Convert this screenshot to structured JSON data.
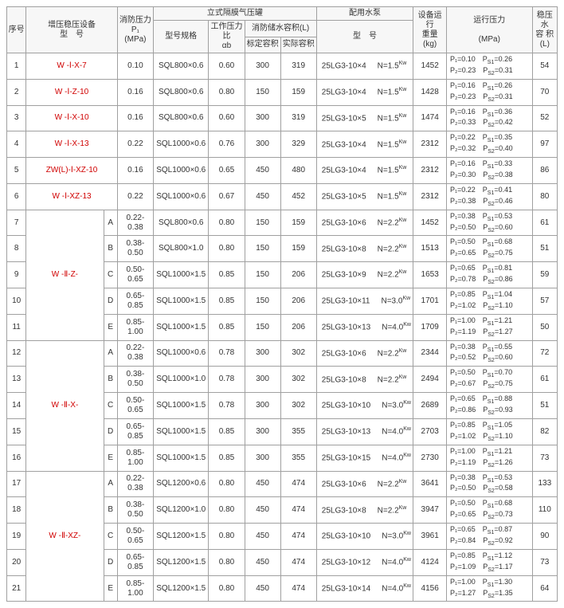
{
  "headers": {
    "seq": "序号",
    "model": "增压稳压设备\n型　号",
    "firePressure": "消防压力\nP₁\n(MPa)",
    "tankGroup": "立式隔膜气压罐",
    "tankModel": "型号规格",
    "workRatio": "工作压力比\nαb",
    "capacityGroup": "消防储水容积(L)",
    "stdCap": "标定容积",
    "realCap": "实际容积",
    "pumpGroup": "配用水泵",
    "pumpModel": "型　号",
    "runWeight": "设备运行\n重量\n(kg)",
    "runPressure": "运行压力\n\n(MPa)",
    "stableCap": "稳压水\n容 积\n(L)"
  },
  "rows": [
    {
      "seq": "1",
      "model": "W -Ⅰ-X-7",
      "modelRed": true,
      "sub": "",
      "fp": "0.10",
      "tank": "SQL800×0.6",
      "ratio": "0.60",
      "std": "300",
      "real": "319",
      "pump": "25LG3-10×4",
      "pumpN": "N=1.5",
      "wt": "1452",
      "p": "P₁=0.10　P<sub>S1</sub>=0.26\nP₂=0.23　P<sub>S2</sub>=0.31",
      "cap": "54"
    },
    {
      "seq": "2",
      "model": "W -Ⅰ-Z-10",
      "modelRed": true,
      "sub": "",
      "fp": "0.16",
      "tank": "SQL800×0.6",
      "ratio": "0.80",
      "std": "150",
      "real": "159",
      "pump": "25LG3-10×4",
      "pumpN": "N=1.5",
      "wt": "1428",
      "p": "P₁=0.16　P<sub>S1</sub>=0.26\nP₂=0.23　P<sub>S2</sub>=0.31",
      "cap": "70"
    },
    {
      "seq": "3",
      "model": "W -Ⅰ-X-10",
      "modelRed": true,
      "sub": "",
      "fp": "0.16",
      "tank": "SQL800×0.6",
      "ratio": "0.60",
      "std": "300",
      "real": "319",
      "pump": "25LG3-10×5",
      "pumpN": "N=1.5",
      "wt": "1474",
      "p": "P₁=0.16　P<sub>S1</sub>=0.36\nP₂=0.33　P<sub>S2</sub>=0.42",
      "cap": "52"
    },
    {
      "seq": "4",
      "model": "W -Ⅰ-X-13",
      "modelRed": true,
      "sub": "",
      "fp": "0.22",
      "tank": "SQL1000×0.6",
      "ratio": "0.76",
      "std": "300",
      "real": "329",
      "pump": "25LG3-10×4",
      "pumpN": "N=1.5",
      "wt": "2312",
      "p": "P₁=0.22　P<sub>S1</sub>=0.35\nP₂=0.32　P<sub>S2</sub>=0.40",
      "cap": "97"
    },
    {
      "seq": "5",
      "model": "ZW(L)-Ⅰ-XZ-10",
      "modelRed": true,
      "sub": "",
      "fp": "0.16",
      "tank": "SQL1000×0.6",
      "ratio": "0.65",
      "std": "450",
      "real": "480",
      "pump": "25LG3-10×4",
      "pumpN": "N=1.5",
      "wt": "2312",
      "p": "P₁=0.16　P<sub>S1</sub>=0.33\nP₂=0.30　P<sub>S2</sub>=0.38",
      "cap": "86"
    },
    {
      "seq": "6",
      "model": "W -Ⅰ-XZ-13",
      "modelRed": true,
      "sub": "",
      "fp": "0.22",
      "tank": "SQL1000×0.6",
      "ratio": "0.67",
      "std": "450",
      "real": "452",
      "pump": "25LG3-10×5",
      "pumpN": "N=1.5",
      "wt": "2312",
      "p": "P₁=0.22　P<sub>S1</sub>=0.41\nP₂=0.38　P<sub>S2</sub>=0.46",
      "cap": "80"
    }
  ],
  "groups": [
    {
      "model": "W -Ⅱ-Z-",
      "modelRed": true,
      "rows": [
        {
          "seq": "7",
          "sub": "A",
          "fp": "0.22-0.38",
          "tank": "SQL800×0.6",
          "ratio": "0.80",
          "std": "150",
          "real": "159",
          "pump": "25LG3-10×6",
          "pumpN": "N=2.2",
          "wt": "1452",
          "p": "P₁=0.38　P<sub>S1</sub>=0.53\nP₂=0.50　P<sub>S2</sub>=0.60",
          "cap": "61"
        },
        {
          "seq": "8",
          "sub": "B",
          "fp": "0.38-0.50",
          "tank": "SQL800×1.0",
          "ratio": "0.80",
          "std": "150",
          "real": "159",
          "pump": "25LG3-10×8",
          "pumpN": "N=2.2",
          "wt": "1513",
          "p": "P₁=0.50　P<sub>S1</sub>=0.68\nP₂=0.65　P<sub>S2</sub>=0.75",
          "cap": "51"
        },
        {
          "seq": "9",
          "sub": "C",
          "fp": "0.50-0.65",
          "tank": "SQL1000×1.5",
          "ratio": "0.85",
          "std": "150",
          "real": "206",
          "pump": "25LG3-10×9",
          "pumpN": "N=2.2",
          "wt": "1653",
          "p": "P₁=0.65　P<sub>S1</sub>=0.81\nP₂=0.78　P<sub>S2</sub>=0.86",
          "cap": "59"
        },
        {
          "seq": "10",
          "sub": "D",
          "fp": "0.65-0.85",
          "tank": "SQL1000×1.5",
          "ratio": "0.85",
          "std": "150",
          "real": "206",
          "pump": "25LG3-10×11",
          "pumpN": "N=3.0",
          "wt": "1701",
          "p": "P₁=0.85　P<sub>S1</sub>=1.04\nP₂=1.02　P<sub>S2</sub>=1.10",
          "cap": "57"
        },
        {
          "seq": "11",
          "sub": "E",
          "fp": "0.85-1.00",
          "tank": "SQL1000×1.5",
          "ratio": "0.85",
          "std": "150",
          "real": "206",
          "pump": "25LG3-10×13",
          "pumpN": "N=4.0",
          "wt": "1709",
          "p": "P₁=1.00　P<sub>S1</sub>=1.21\nP₂=1.19　P<sub>S2</sub>=1.27",
          "cap": "50"
        }
      ]
    },
    {
      "model": "W -Ⅱ-X-",
      "modelRed": true,
      "rows": [
        {
          "seq": "12",
          "sub": "A",
          "fp": "0.22-0.38",
          "tank": "SQL1000×0.6",
          "ratio": "0.78",
          "std": "300",
          "real": "302",
          "pump": "25LG3-10×6",
          "pumpN": "N=2.2",
          "wt": "2344",
          "p": "P₁=0.38　P<sub>S1</sub>=0.55\nP₂=0.52　P<sub>S2</sub>=0.60",
          "cap": "72"
        },
        {
          "seq": "13",
          "sub": "B",
          "fp": "0.38-0.50",
          "tank": "SQL1000×1.0",
          "ratio": "0.78",
          "std": "300",
          "real": "302",
          "pump": "25LG3-10×8",
          "pumpN": "N=2.2",
          "wt": "2494",
          "p": "P₁=0.50　P<sub>S1</sub>=0.70\nP₂=0.67　P<sub>S2</sub>=0.75",
          "cap": "61"
        },
        {
          "seq": "14",
          "sub": "C",
          "fp": "0.50-0.65",
          "tank": "SQL1000×1.5",
          "ratio": "0.78",
          "std": "300",
          "real": "302",
          "pump": "25LG3-10×10",
          "pumpN": "N=3.0",
          "wt": "2689",
          "p": "P₁=0.65　P<sub>S1</sub>=0.88\nP₂=0.86　P<sub>S2</sub>=0.93",
          "cap": "51"
        },
        {
          "seq": "15",
          "sub": "D",
          "fp": "0.65-0.85",
          "tank": "SQL1000×1.5",
          "ratio": "0.85",
          "std": "300",
          "real": "355",
          "pump": "25LG3-10×13",
          "pumpN": "N=4.0",
          "wt": "2703",
          "p": "P₁=0.85　P<sub>S1</sub>=1.05\nP₂=1.02　P<sub>S2</sub>=1.10",
          "cap": "82"
        },
        {
          "seq": "16",
          "sub": "E",
          "fp": "0.85-1.00",
          "tank": "SQL1000×1.5",
          "ratio": "0.85",
          "std": "300",
          "real": "355",
          "pump": "25LG3-10×15",
          "pumpN": "N=4.0",
          "wt": "2730",
          "p": "P₁=1.00　P<sub>S1</sub>=1.21\nP₂=1.19　P<sub>S2</sub>=1.26",
          "cap": "73"
        }
      ]
    },
    {
      "model": "W -Ⅱ-XZ-",
      "modelRed": true,
      "rows": [
        {
          "seq": "17",
          "sub": "A",
          "fp": "0.22-0.38",
          "tank": "SQL1200×0.6",
          "ratio": "0.80",
          "std": "450",
          "real": "474",
          "pump": "25LG3-10×6",
          "pumpN": "N=2.2",
          "wt": "3641",
          "p": "P₁=0.38　P<sub>S1</sub>=0.53\nP₂=0.50　P<sub>S2</sub>=0.58",
          "cap": "133"
        },
        {
          "seq": "18",
          "sub": "B",
          "fp": "0.38-0.50",
          "tank": "SQL1200×1.0",
          "ratio": "0.80",
          "std": "450",
          "real": "474",
          "pump": "25LG3-10×8",
          "pumpN": "N=2.2",
          "wt": "3947",
          "p": "P₁=0.50　P<sub>S1</sub>=0.68\nP₂=0.65　P<sub>S2</sub>=0.73",
          "cap": "110"
        },
        {
          "seq": "19",
          "sub": "C",
          "fp": "0.50-0.65",
          "tank": "SQL1200×1.5",
          "ratio": "0.80",
          "std": "450",
          "real": "474",
          "pump": "25LG3-10×10",
          "pumpN": "N=3.0",
          "wt": "3961",
          "p": "P₁=0.65　P<sub>S1</sub>=0.87\nP₂=0.84　P<sub>S2</sub>=0.92",
          "cap": "90"
        },
        {
          "seq": "20",
          "sub": "D",
          "fp": "0.65-0.85",
          "tank": "SQL1200×1.5",
          "ratio": "0.80",
          "std": "450",
          "real": "474",
          "pump": "25LG3-10×12",
          "pumpN": "N=4.0",
          "wt": "4124",
          "p": "P₁=0.85　P<sub>S1</sub>=1.12\nP₂=1.09　P<sub>S2</sub>=1.17",
          "cap": "73"
        },
        {
          "seq": "21",
          "sub": "E",
          "fp": "0.85-1.00",
          "tank": "SQL1200×1.5",
          "ratio": "0.80",
          "std": "450",
          "real": "474",
          "pump": "25LG3-10×14",
          "pumpN": "N=4.0",
          "wt": "4156",
          "p": "P₁=1.00　P<sub>S1</sub>=1.30\nP₂=1.27　P<sub>S2</sub>=1.35",
          "cap": "64"
        }
      ]
    }
  ]
}
